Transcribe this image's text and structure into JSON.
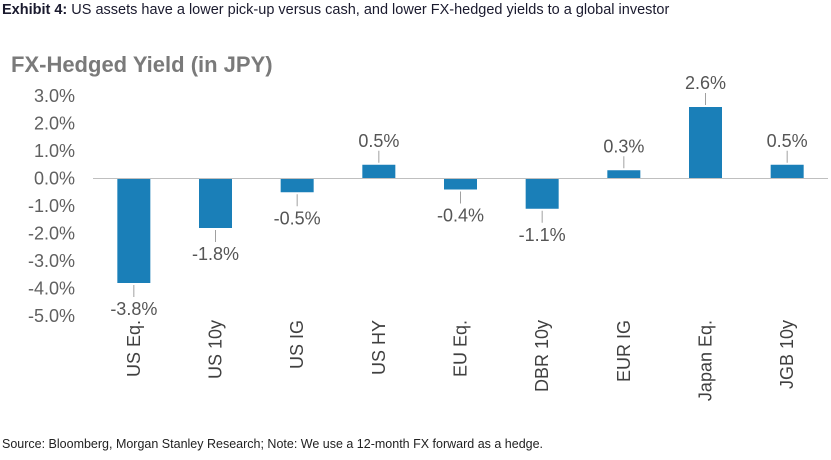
{
  "header": {
    "exhibit_label": "Exhibit 4:",
    "exhibit_text": " US assets have a lower pick-up versus cash, and lower FX-hedged yields to a global investor"
  },
  "footer": {
    "source": "Source: Bloomberg, Morgan Stanley Research; Note: We use a 12-month FX forward as a hedge."
  },
  "colors": {
    "bar": "#1a7fb8",
    "axis": "#bfbfbf",
    "leader": "#a0a0a0"
  },
  "chart_data": {
    "type": "bar",
    "title": "FX-Hedged Yield (in JPY)",
    "xlabel": "",
    "ylabel": "",
    "categories": [
      "US Eq.",
      "US 10y",
      "US IG",
      "US HY",
      "EU Eq.",
      "DBR 10y",
      "EUR IG",
      "Japan Eq.",
      "JGB 10y"
    ],
    "values": [
      -3.8,
      -1.8,
      -0.5,
      0.5,
      -0.4,
      -1.1,
      0.3,
      2.6,
      0.5
    ],
    "data_labels": [
      "-3.8%",
      "-1.8%",
      "-0.5%",
      "0.5%",
      "-0.4%",
      "-1.1%",
      "0.3%",
      "2.6%",
      "0.5%"
    ],
    "ylim": [
      -5.0,
      3.0
    ],
    "yticks": [
      3.0,
      2.0,
      1.0,
      0.0,
      -1.0,
      -2.0,
      -3.0,
      -4.0,
      -5.0
    ],
    "ytick_labels": [
      "3.0%",
      "2.0%",
      "1.0%",
      "0.0%",
      "-1.0%",
      "-2.0%",
      "-3.0%",
      "-4.0%",
      "-5.0%"
    ],
    "grid": false,
    "legend": "none"
  }
}
